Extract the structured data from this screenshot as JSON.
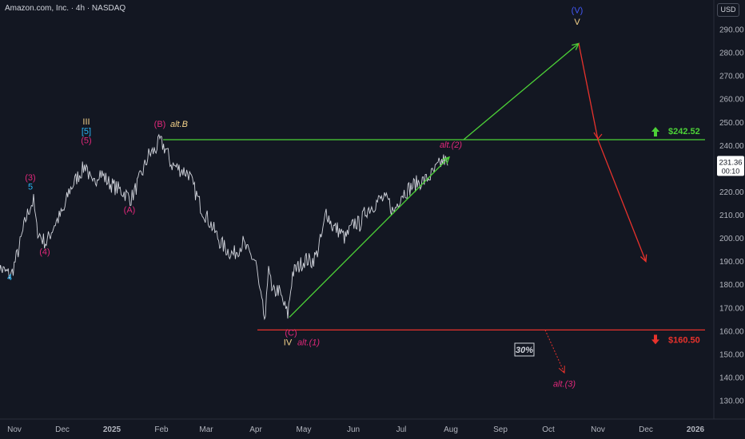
{
  "header": {
    "symbol_line": "Amazon.com, Inc. · 4h · NASDAQ",
    "currency": "USD"
  },
  "price_tag": {
    "price": "231.36",
    "countdown": "00:10"
  },
  "colors": {
    "background": "#131722",
    "price": "#d1d4dc",
    "green": "#4cd137",
    "red": "#e8322c",
    "magenta": "#e0287a",
    "cyan": "#29b6f6",
    "gold": "#f5d38a",
    "blue": "#4257f5",
    "axis_text": "#b2b5be"
  },
  "chart_data": {
    "type": "line",
    "title": "Amazon.com, Inc. · 4h · NASDAQ",
    "y_axis": {
      "ylim": [
        122,
        300
      ],
      "ticks": [
        130,
        140,
        150,
        160,
        170,
        180,
        190,
        200,
        210,
        220,
        230,
        240,
        250,
        260,
        270,
        280,
        290
      ],
      "position": "right"
    },
    "x_axis": {
      "ticks": [
        "Nov",
        "Dec",
        "2025",
        "Feb",
        "Mar",
        "Apr",
        "May",
        "Jun",
        "Jul",
        "Aug",
        "Sep",
        "Oct",
        "Nov",
        "Dec",
        "2026"
      ]
    },
    "price_series": {
      "name": "AMZN",
      "points": [
        [
          "2024-10-21",
          188
        ],
        [
          "2024-10-25",
          186
        ],
        [
          "2024-10-30",
          184
        ],
        [
          "2024-11-04",
          196
        ],
        [
          "2024-11-08",
          208
        ],
        [
          "2024-11-11",
          214
        ],
        [
          "2024-11-13",
          216
        ],
        [
          "2024-11-15",
          204
        ],
        [
          "2024-11-18",
          200
        ],
        [
          "2024-11-21",
          198
        ],
        [
          "2024-11-26",
          206
        ],
        [
          "2024-12-02",
          212
        ],
        [
          "2024-12-05",
          220
        ],
        [
          "2024-12-10",
          226
        ],
        [
          "2024-12-13",
          229
        ],
        [
          "2024-12-16",
          232
        ],
        [
          "2024-12-18",
          226
        ],
        [
          "2024-12-20",
          222
        ],
        [
          "2024-12-24",
          229
        ],
        [
          "2024-12-30",
          224
        ],
        [
          "2025-01-03",
          222
        ],
        [
          "2025-01-08",
          220
        ],
        [
          "2025-01-13",
          217
        ],
        [
          "2025-01-15",
          220
        ],
        [
          "2025-01-21",
          230
        ],
        [
          "2025-01-24",
          236
        ],
        [
          "2025-01-28",
          238
        ],
        [
          "2025-01-31",
          242
        ],
        [
          "2025-02-04",
          238
        ],
        [
          "2025-02-07",
          232
        ],
        [
          "2025-02-12",
          230
        ],
        [
          "2025-02-18",
          228
        ],
        [
          "2025-02-21",
          222
        ],
        [
          "2025-02-26",
          213
        ],
        [
          "2025-03-04",
          206
        ],
        [
          "2025-03-10",
          198
        ],
        [
          "2025-03-14",
          195
        ],
        [
          "2025-03-18",
          193
        ],
        [
          "2025-03-24",
          198
        ],
        [
          "2025-03-27",
          194
        ],
        [
          "2025-04-01",
          190
        ],
        [
          "2025-04-03",
          179
        ],
        [
          "2025-04-07",
          163
        ],
        [
          "2025-04-09",
          191
        ],
        [
          "2025-04-11",
          176
        ],
        [
          "2025-04-15",
          178
        ],
        [
          "2025-04-21",
          167
        ],
        [
          "2025-04-24",
          185
        ],
        [
          "2025-04-28",
          188
        ],
        [
          "2025-05-02",
          191
        ],
        [
          "2025-05-06",
          190
        ],
        [
          "2025-05-09",
          193
        ],
        [
          "2025-05-13",
          203
        ],
        [
          "2025-05-15",
          212
        ],
        [
          "2025-05-19",
          205
        ],
        [
          "2025-05-22",
          204
        ],
        [
          "2025-05-27",
          200
        ],
        [
          "2025-06-02",
          207
        ],
        [
          "2025-06-05",
          206
        ],
        [
          "2025-06-09",
          212
        ],
        [
          "2025-06-13",
          214
        ],
        [
          "2025-06-18",
          217
        ],
        [
          "2025-06-23",
          216
        ],
        [
          "2025-06-26",
          211
        ],
        [
          "2025-07-01",
          219
        ],
        [
          "2025-07-07",
          222
        ],
        [
          "2025-07-11",
          224
        ],
        [
          "2025-07-16",
          225
        ],
        [
          "2025-07-21",
          228
        ],
        [
          "2025-07-24",
          231
        ],
        [
          "2025-07-28",
          234
        ],
        [
          "2025-07-30",
          231.36
        ]
      ]
    },
    "levels": [
      {
        "label": "$242.52",
        "value": 242.52,
        "color": "green",
        "from": "2025-02-02"
      },
      {
        "label": "$160.50",
        "value": 160.5,
        "color": "red",
        "from": "2025-04-02"
      }
    ],
    "scenario_paths": [
      {
        "color": "green",
        "points": [
          [
            "2025-04-22",
            166
          ],
          [
            "2025-07-31",
            235
          ]
        ]
      },
      {
        "color": "green",
        "points": [
          [
            "2025-08-09",
            242.52
          ],
          [
            "2025-10-20",
            284
          ]
        ]
      },
      {
        "color": "red",
        "points": [
          [
            "2025-10-20",
            284
          ],
          [
            "2025-11-01",
            242.52
          ],
          [
            "2025-12-01",
            190
          ]
        ]
      },
      {
        "color": "red",
        "dashed": true,
        "points": [
          [
            "2025-09-29",
            160.5
          ],
          [
            "2025-10-11",
            142
          ]
        ]
      }
    ],
    "wave_labels": [
      {
        "text": "4",
        "x": "2024-10-29",
        "y": 182,
        "color": "cyan"
      },
      {
        "text": "(3)",
        "x": "2024-11-11",
        "y": 225,
        "color": "magenta"
      },
      {
        "text": "5",
        "x": "2024-11-11",
        "y": 221,
        "color": "cyan"
      },
      {
        "text": "(4)",
        "x": "2024-11-20",
        "y": 193,
        "color": "magenta"
      },
      {
        "text": "III",
        "x": "2024-12-16",
        "y": 249,
        "color": "gold"
      },
      {
        "text": "[5]",
        "x": "2024-12-16",
        "y": 245,
        "color": "cyan"
      },
      {
        "text": "(5)",
        "x": "2024-12-16",
        "y": 241,
        "color": "magenta"
      },
      {
        "text": "(A)",
        "x": "2025-01-12",
        "y": 211,
        "color": "magenta"
      },
      {
        "text": "(B)",
        "x": "2025-01-31",
        "y": 248,
        "color": "magenta"
      },
      {
        "text": "alt.B",
        "x": "2025-02-12",
        "y": 248,
        "color": "gold"
      },
      {
        "text": "(C)",
        "x": "2025-04-23",
        "y": 158,
        "color": "magenta"
      },
      {
        "text": "IV",
        "x": "2025-04-21",
        "y": 154,
        "color": "gold"
      },
      {
        "text": "alt.(1)",
        "x": "2025-05-04",
        "y": 154,
        "color": "magenta"
      },
      {
        "text": "alt.(2)",
        "x": "2025-08-01",
        "y": 239,
        "color": "magenta"
      },
      {
        "text": "(V)",
        "x": "2025-10-19",
        "y": 297,
        "color": "blue"
      },
      {
        "text": "V",
        "x": "2025-10-19",
        "y": 292,
        "color": "gold"
      },
      {
        "text": "alt.(3)",
        "x": "2025-10-11",
        "y": 136,
        "color": "magenta"
      }
    ],
    "annotations": [
      {
        "text": "30%",
        "x": "2025-09-16",
        "y": 151
      }
    ]
  }
}
